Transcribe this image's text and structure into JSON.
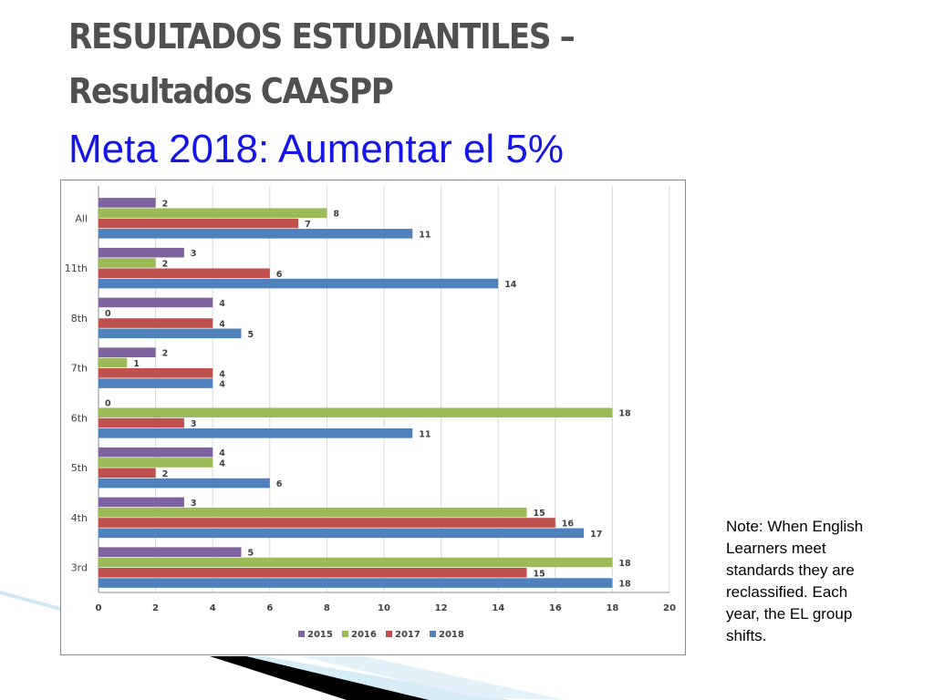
{
  "header": {
    "title_line1": "RESULTADOS ESTUDIANTILES –",
    "title_line2": "Resultados CAASPP",
    "subtitle": "Meta 2018: Aumentar el 5%"
  },
  "note": "Note: When English Learners meet standards they are reclassified. Each year, the EL group shifts.",
  "chart_data": {
    "type": "bar",
    "orientation": "horizontal",
    "title": "",
    "xlabel": "",
    "ylabel": "",
    "categories": [
      "All",
      "11th",
      "8th",
      "7th",
      "6th",
      "5th",
      "4th",
      "3rd"
    ],
    "xlim": [
      0,
      20
    ],
    "xticks": [
      "0",
      "2",
      "4",
      "6",
      "8",
      "10",
      "12",
      "14",
      "16",
      "18",
      "20"
    ],
    "grid": true,
    "legend_position": "bottom",
    "series": [
      {
        "name": "2015",
        "color": "#7f63a1",
        "values": [
          2,
          3,
          4,
          2,
          0,
          4,
          3,
          5
        ]
      },
      {
        "name": "2016",
        "color": "#9bbb59",
        "values": [
          8,
          2,
          0,
          1,
          18,
          4,
          15,
          18
        ]
      },
      {
        "name": "2017",
        "color": "#c0504d",
        "values": [
          7,
          6,
          4,
          4,
          3,
          2,
          16,
          15
        ]
      },
      {
        "name": "2018",
        "color": "#4f81bd",
        "values": [
          11,
          14,
          5,
          4,
          11,
          6,
          17,
          18
        ]
      }
    ]
  }
}
